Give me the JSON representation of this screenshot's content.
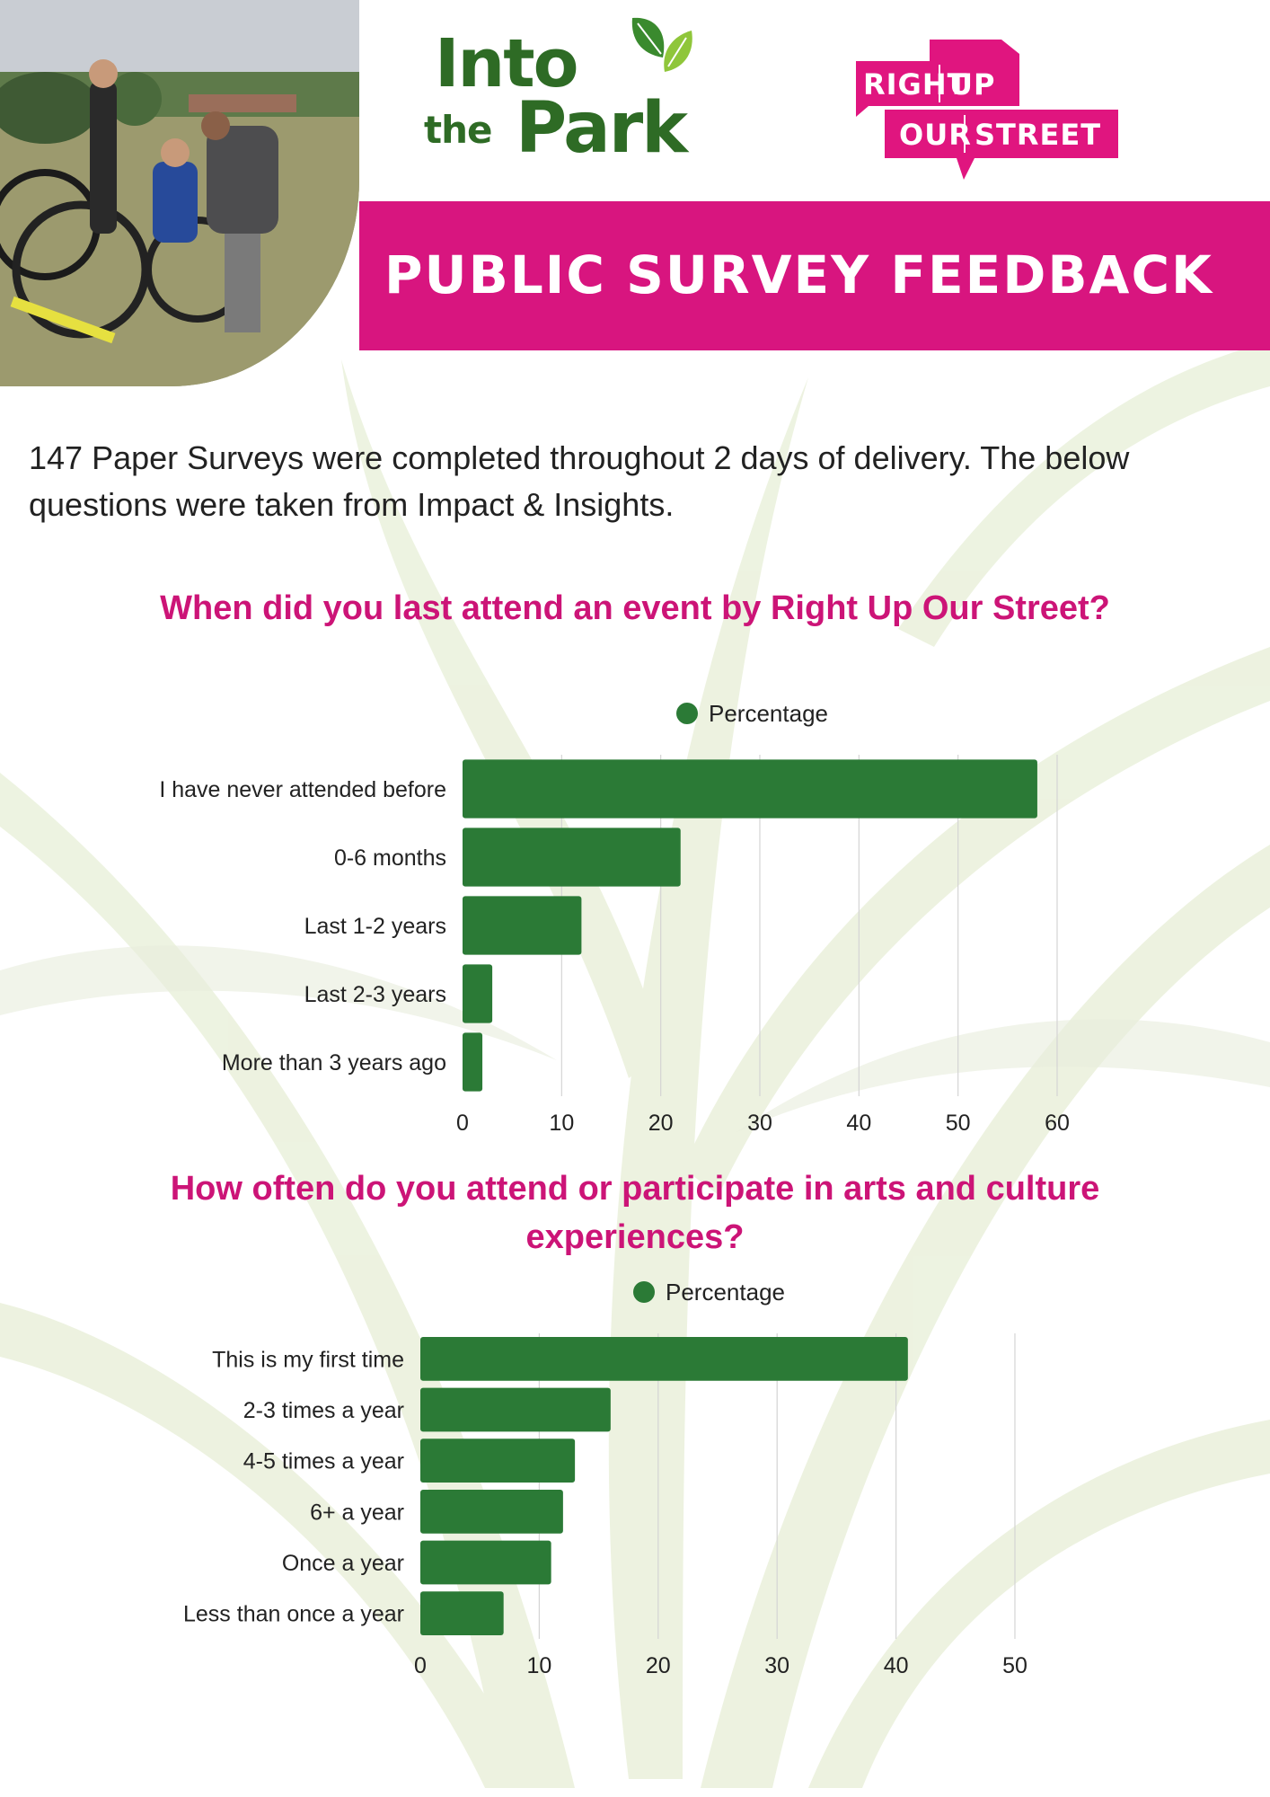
{
  "header": {
    "logo_into": "Into",
    "logo_the": "the",
    "logo_park": "Park",
    "ruos_words": [
      "RIGHT",
      "UP",
      "OUR",
      "STREET"
    ],
    "banner_title": "PUBLIC SURVEY FEEDBACK"
  },
  "intro": "147 Paper Surveys were completed throughout 2 days of delivery. The below questions were taken from Impact & Insights.",
  "colors": {
    "magenta": "#d8157f",
    "title_magenta": "#cc1477",
    "bar_green": "#2b7a36",
    "logo_green": "#2e6b25"
  },
  "chart_data": [
    {
      "type": "bar",
      "orientation": "horizontal",
      "title": "When did you last attend an event by Right Up Our Street?",
      "legend": "Percentage",
      "legend_position": "top",
      "categories": [
        "I have never attended before",
        "0-6 months",
        "Last 1-2 years",
        "Last 2-3 years",
        "More than 3 years ago"
      ],
      "series": [
        {
          "name": "Percentage",
          "values": [
            58,
            22,
            12,
            3,
            2
          ]
        }
      ],
      "xticks": [
        "0",
        "10",
        "20",
        "30",
        "40",
        "50",
        "60"
      ],
      "xlim": [
        0,
        60
      ],
      "grid": "vertical"
    },
    {
      "type": "bar",
      "orientation": "horizontal",
      "title": "How often do you attend or participate in arts and culture experiences?",
      "legend": "Percentage",
      "legend_position": "top",
      "categories": [
        "This is my first time",
        "2-3 times a year",
        "4-5 times a year",
        "6+ a year",
        "Once a year",
        "Less than once a year"
      ],
      "series": [
        {
          "name": "Percentage",
          "values": [
            41,
            16,
            13,
            12,
            11,
            7
          ]
        }
      ],
      "xticks": [
        "0",
        "10",
        "20",
        "30",
        "40",
        "50"
      ],
      "xlim": [
        0,
        50
      ],
      "grid": "vertical"
    }
  ]
}
